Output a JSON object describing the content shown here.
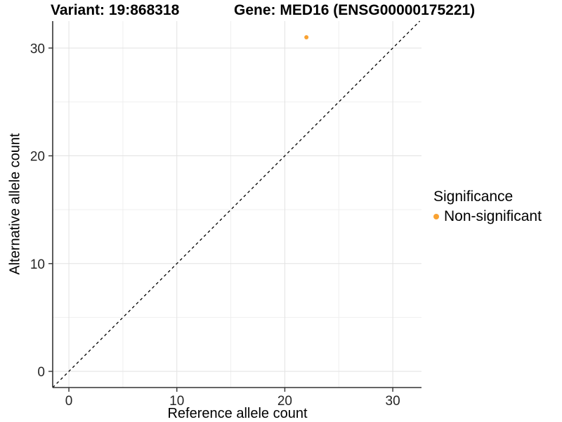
{
  "chart_data": {
    "type": "scatter",
    "title_left": "Variant: 19:868318",
    "title_right": "Gene: MED16 (ENSG00000175221)",
    "xlabel": "Reference allele count",
    "ylabel": "Alternative allele count",
    "xlim": [
      -1.5,
      32.66
    ],
    "ylim": [
      -1.5,
      32.5
    ],
    "xticks": [
      0,
      10,
      20,
      30
    ],
    "yticks": [
      0,
      10,
      20,
      30
    ],
    "xticks_minor": [
      5,
      15,
      25
    ],
    "yticks_minor": [
      5,
      15,
      25
    ],
    "grid": true,
    "points": [
      {
        "x": 22,
        "y": 31,
        "series": "Non-significant",
        "color": "#F9A232"
      }
    ],
    "abline": {
      "slope": 1,
      "intercept": 0,
      "style": "dashed",
      "color": "#000000"
    },
    "legend": {
      "position": "right",
      "title": "Significance",
      "items": [
        {
          "label": "Non-significant",
          "color": "#F9A232"
        }
      ]
    },
    "colors": {
      "background": "#FFFFFF",
      "grid_major": "#E2E2E2",
      "grid_minor": "#EFEFEF",
      "axis": "#333333",
      "tick_text": "#262626"
    }
  }
}
